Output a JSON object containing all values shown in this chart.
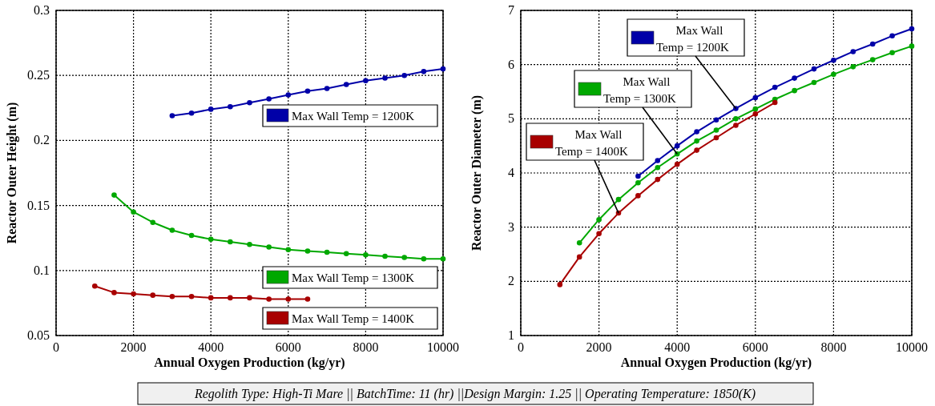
{
  "chart_data": [
    {
      "type": "line",
      "xlabel": "Annual Oxygen Production (kg/yr)",
      "ylabel": "Reactor Outer Height (m)",
      "xlim": [
        0,
        10000
      ],
      "xticks": [
        0,
        2000,
        4000,
        6000,
        8000,
        10000
      ],
      "ylim": [
        0.05,
        0.3
      ],
      "yticks": [
        0.05,
        0.1,
        0.15,
        0.2,
        0.25,
        0.3
      ],
      "grid": true,
      "marker": "circle",
      "line_style": "solid",
      "legend": "right",
      "series": [
        {
          "name": "Max Wall Temp = 1200K",
          "color": "#0000a8",
          "x": [
            3000,
            3500,
            4000,
            4500,
            5000,
            5500,
            6000,
            6500,
            7000,
            7500,
            8000,
            8500,
            9000,
            9500,
            10000
          ],
          "values": [
            0.219,
            0.221,
            0.224,
            0.226,
            0.229,
            0.232,
            0.235,
            0.238,
            0.24,
            0.243,
            0.246,
            0.248,
            0.25,
            0.253,
            0.255
          ]
        },
        {
          "name": "Max Wall Temp = 1300K",
          "color": "#00a800",
          "x": [
            1500,
            2000,
            2500,
            3000,
            3500,
            4000,
            4500,
            5000,
            5500,
            6000,
            6500,
            7000,
            7500,
            8000,
            8500,
            9000,
            9500,
            10000
          ],
          "values": [
            0.158,
            0.145,
            0.137,
            0.131,
            0.127,
            0.124,
            0.122,
            0.12,
            0.118,
            0.116,
            0.115,
            0.114,
            0.113,
            0.112,
            0.111,
            0.11,
            0.109,
            0.109
          ]
        },
        {
          "name": "Max Wall Temp = 1400K",
          "color": "#a80000",
          "x": [
            1000,
            1500,
            2000,
            2500,
            3000,
            3500,
            4000,
            4500,
            5000,
            5500,
            6000,
            6500
          ],
          "values": [
            0.088,
            0.083,
            0.082,
            0.081,
            0.08,
            0.08,
            0.079,
            0.079,
            0.079,
            0.078,
            0.078,
            0.078
          ]
        }
      ]
    },
    {
      "type": "line",
      "xlabel": "Annual Oxygen Production (kg/yr)",
      "ylabel": "Reactor Outer Diameter (m)",
      "xlim": [
        0,
        10000
      ],
      "xticks": [
        0,
        2000,
        4000,
        6000,
        8000,
        10000
      ],
      "ylim": [
        1,
        7
      ],
      "yticks": [
        1,
        2,
        3,
        4,
        5,
        6,
        7
      ],
      "grid": true,
      "marker": "circle",
      "line_style": "solid",
      "legend": "top left",
      "annotations": [
        "Regolith Type: High-Ti Mare || BatchTime: 11 (hr) ||Design Margin: 1.25 || Operating Temperature: 1850(K)"
      ],
      "series": [
        {
          "name": "Max Wall Temp = 1200K",
          "color": "#0000a8",
          "x": [
            3000,
            3500,
            4000,
            4500,
            5000,
            5500,
            6000,
            6500,
            7000,
            7500,
            8000,
            8500,
            9000,
            9500,
            10000
          ],
          "values": [
            3.94,
            4.23,
            4.5,
            4.76,
            4.98,
            5.19,
            5.39,
            5.58,
            5.75,
            5.92,
            6.08,
            6.24,
            6.38,
            6.53,
            6.66
          ]
        },
        {
          "name": "Max Wall Temp = 1300K",
          "color": "#00a800",
          "x": [
            1500,
            2000,
            2500,
            3000,
            3500,
            4000,
            4500,
            5000,
            5500,
            6000,
            6500,
            7000,
            7500,
            8000,
            8500,
            9000,
            9500,
            10000
          ],
          "values": [
            2.71,
            3.14,
            3.51,
            3.82,
            4.1,
            4.35,
            4.59,
            4.79,
            5.0,
            5.18,
            5.36,
            5.52,
            5.67,
            5.82,
            5.96,
            6.09,
            6.22,
            6.34
          ]
        },
        {
          "name": "Max Wall Temp = 1400K",
          "color": "#a80000",
          "x": [
            1000,
            1500,
            2000,
            2500,
            3000,
            3500,
            4000,
            4500,
            5000,
            5500,
            6000,
            6500
          ],
          "values": [
            1.94,
            2.45,
            2.88,
            3.26,
            3.58,
            3.88,
            4.16,
            4.42,
            4.65,
            4.88,
            5.09,
            5.3
          ]
        }
      ]
    }
  ]
}
